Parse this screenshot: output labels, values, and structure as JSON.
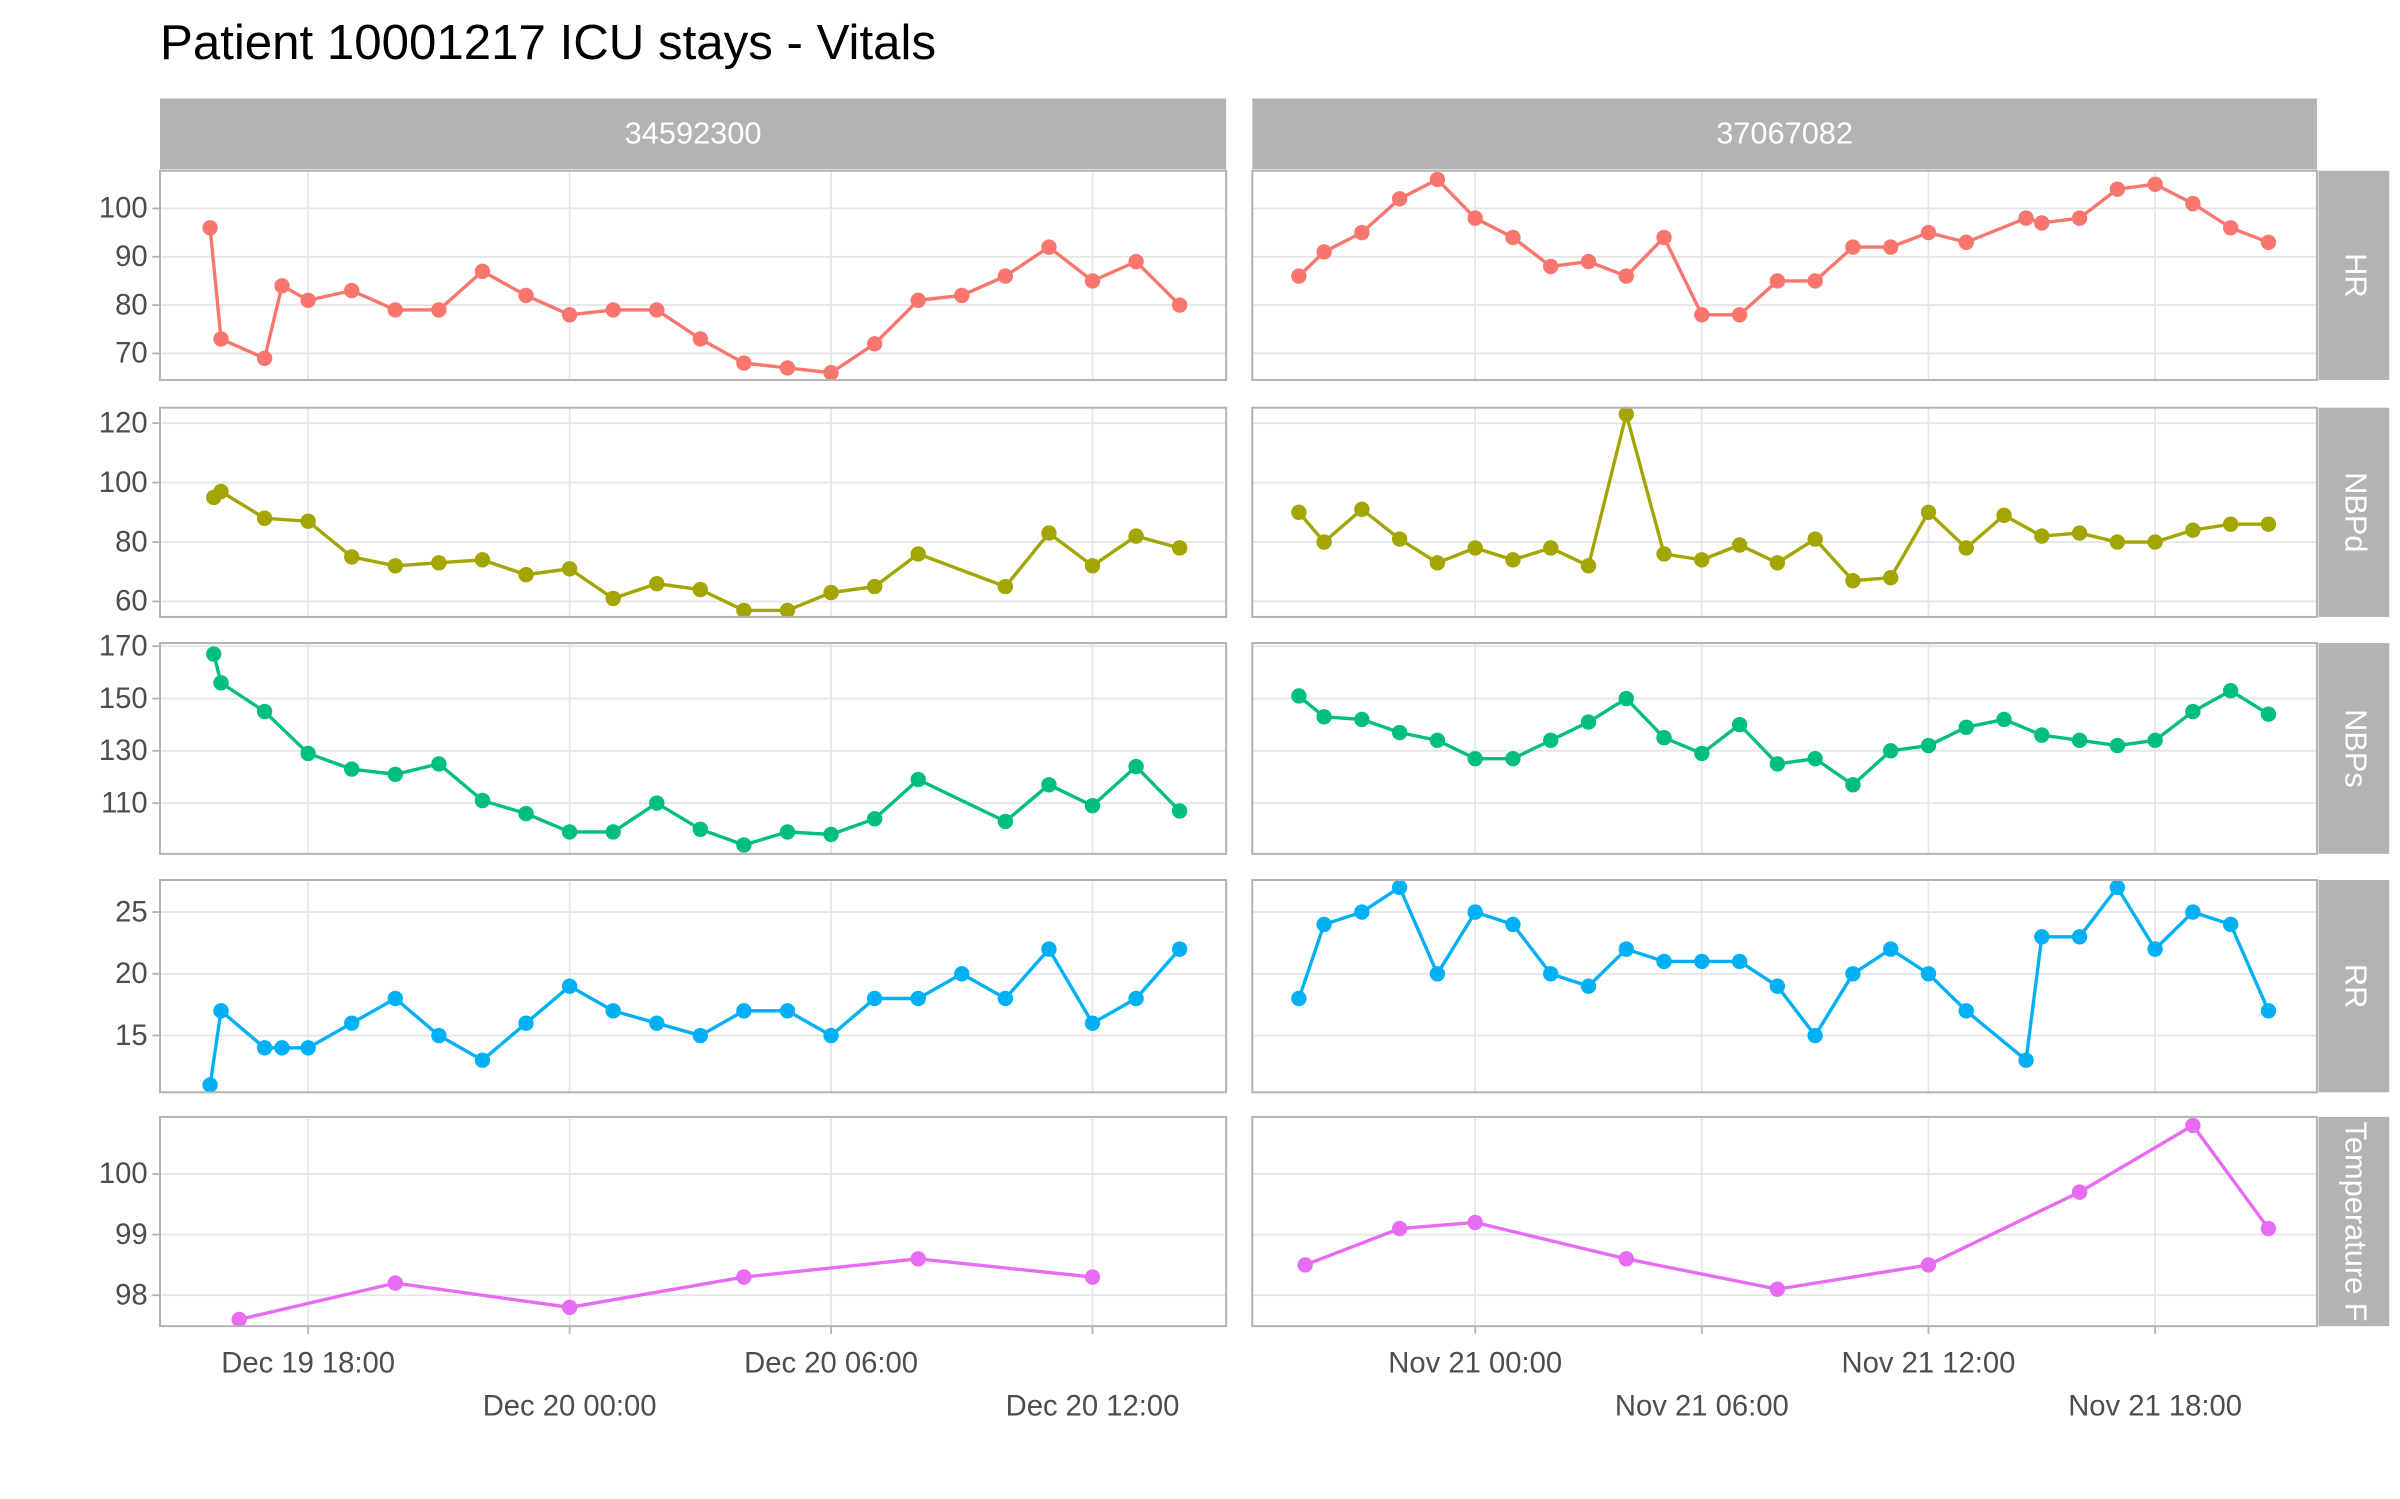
{
  "chart_data": {
    "type": "line",
    "title": "Patient 10001217 ICU stays - Vitals",
    "columns": [
      {
        "name": "34592300",
        "xlim": [
          "Dec 19 14:36",
          "Dec 20 15:04"
        ],
        "xticks": [
          "Dec 19 18:00",
          "Dec 20 00:00",
          "Dec 20 06:00",
          "Dec 20 12:00"
        ]
      },
      {
        "name": "37067082",
        "xlim": [
          "Nov 20 18:06",
          "Nov 21 22:17"
        ],
        "xticks": [
          "Nov 21 00:00",
          "Nov 21 06:00",
          "Nov 21 12:00",
          "Nov 21 18:00"
        ]
      }
    ],
    "rows": [
      {
        "name": "HR",
        "color": "#F8766D",
        "ylim": [
          64.5,
          107.8
        ],
        "yticks": [
          70,
          80,
          90,
          100
        ],
        "panels": [
          {
            "x": [
              "Dec 19 15:45",
              "Dec 19 16:00",
              "Dec 19 17:00",
              "Dec 19 17:24",
              "Dec 19 18:00",
              "Dec 19 19:00",
              "Dec 19 20:00",
              "Dec 19 21:00",
              "Dec 19 22:00",
              "Dec 19 23:00",
              "Dec 20 00:00",
              "Dec 20 01:00",
              "Dec 20 02:00",
              "Dec 20 03:00",
              "Dec 20 04:00",
              "Dec 20 05:00",
              "Dec 20 06:00",
              "Dec 20 07:00",
              "Dec 20 08:00",
              "Dec 20 09:00",
              "Dec 20 10:00",
              "Dec 20 11:00",
              "Dec 20 12:00",
              "Dec 20 13:00",
              "Dec 20 14:00"
            ],
            "values": [
              96,
              73,
              69,
              84,
              81,
              83,
              79,
              79,
              87,
              82,
              78,
              79,
              79,
              73,
              68,
              67,
              66,
              72,
              81,
              82,
              86,
              92,
              85,
              89,
              80
            ]
          },
          {
            "x": [
              "Nov 20 19:20",
              "Nov 20 20:00",
              "Nov 20 21:00",
              "Nov 20 22:00",
              "Nov 20 23:00",
              "Nov 21 00:00",
              "Nov 21 01:00",
              "Nov 21 02:00",
              "Nov 21 03:00",
              "Nov 21 04:00",
              "Nov 21 05:00",
              "Nov 21 06:00",
              "Nov 21 07:00",
              "Nov 21 08:00",
              "Nov 21 09:00",
              "Nov 21 10:00",
              "Nov 21 11:00",
              "Nov 21 12:00",
              "Nov 21 13:00",
              "Nov 21 14:35",
              "Nov 21 15:00",
              "Nov 21 16:00",
              "Nov 21 17:00",
              "Nov 21 18:00",
              "Nov 21 19:00",
              "Nov 21 20:00",
              "Nov 21 21:00"
            ],
            "values": [
              86,
              91,
              95,
              102,
              106,
              98,
              94,
              88,
              89,
              86,
              94,
              78,
              78,
              85,
              85,
              92,
              92,
              95,
              93,
              98,
              97,
              98,
              104,
              105,
              101,
              96,
              93
            ]
          }
        ]
      },
      {
        "name": "NBPd",
        "color": "#A3A500",
        "ylim": [
          54.8,
          125.2
        ],
        "yticks": [
          60,
          80,
          100,
          120
        ],
        "panels": [
          {
            "x": [
              "Dec 19 15:50",
              "Dec 19 16:00",
              "Dec 19 17:00",
              "Dec 19 18:00",
              "Dec 19 19:00",
              "Dec 19 20:00",
              "Dec 19 21:00",
              "Dec 19 22:00",
              "Dec 19 23:00",
              "Dec 20 00:00",
              "Dec 20 01:00",
              "Dec 20 02:00",
              "Dec 20 03:00",
              "Dec 20 04:00",
              "Dec 20 05:00",
              "Dec 20 06:00",
              "Dec 20 07:00",
              "Dec 20 08:00",
              "Dec 20 10:00",
              "Dec 20 11:00",
              "Dec 20 12:00",
              "Dec 20 13:00",
              "Dec 20 14:00"
            ],
            "values": [
              95,
              97,
              88,
              87,
              75,
              72,
              73,
              74,
              69,
              71,
              61,
              66,
              64,
              57,
              57,
              63,
              65,
              76,
              65,
              83,
              72,
              82,
              78
            ]
          },
          {
            "x": [
              "Nov 20 19:20",
              "Nov 20 20:00",
              "Nov 20 21:00",
              "Nov 20 22:00",
              "Nov 20 23:00",
              "Nov 21 00:00",
              "Nov 21 01:00",
              "Nov 21 02:00",
              "Nov 21 03:00",
              "Nov 21 04:00",
              "Nov 21 05:00",
              "Nov 21 06:00",
              "Nov 21 07:00",
              "Nov 21 08:00",
              "Nov 21 09:00",
              "Nov 21 10:00",
              "Nov 21 11:00",
              "Nov 21 12:00",
              "Nov 21 13:00",
              "Nov 21 14:00",
              "Nov 21 15:00",
              "Nov 21 16:00",
              "Nov 21 17:00",
              "Nov 21 18:00",
              "Nov 21 19:00",
              "Nov 21 20:00",
              "Nov 21 21:00"
            ],
            "values": [
              90,
              80,
              91,
              81,
              73,
              78,
              74,
              78,
              72,
              123,
              76,
              74,
              79,
              73,
              81,
              67,
              68,
              90,
              78,
              89,
              82,
              83,
              80,
              80,
              84,
              86,
              86
            ]
          }
        ]
      },
      {
        "name": "NBPs",
        "color": "#00BF7D",
        "ylim": [
          90.6,
          171.2
        ],
        "yticks": [
          110,
          130,
          150,
          170
        ],
        "panels": [
          {
            "x": [
              "Dec 19 15:50",
              "Dec 19 16:00",
              "Dec 19 17:00",
              "Dec 19 18:00",
              "Dec 19 19:00",
              "Dec 19 20:00",
              "Dec 19 21:00",
              "Dec 19 22:00",
              "Dec 19 23:00",
              "Dec 20 00:00",
              "Dec 20 01:00",
              "Dec 20 02:00",
              "Dec 20 03:00",
              "Dec 20 04:00",
              "Dec 20 05:00",
              "Dec 20 06:00",
              "Dec 20 07:00",
              "Dec 20 08:00",
              "Dec 20 10:00",
              "Dec 20 11:00",
              "Dec 20 12:00",
              "Dec 20 13:00",
              "Dec 20 14:00"
            ],
            "values": [
              167,
              156,
              145,
              129,
              123,
              121,
              125,
              111,
              106,
              99,
              99,
              110,
              100,
              94,
              99,
              98,
              104,
              119,
              103,
              117,
              109,
              124,
              107
            ]
          },
          {
            "x": [
              "Nov 20 19:20",
              "Nov 20 20:00",
              "Nov 20 21:00",
              "Nov 20 22:00",
              "Nov 20 23:00",
              "Nov 21 00:00",
              "Nov 21 01:00",
              "Nov 21 02:00",
              "Nov 21 03:00",
              "Nov 21 04:00",
              "Nov 21 05:00",
              "Nov 21 06:00",
              "Nov 21 07:00",
              "Nov 21 08:00",
              "Nov 21 09:00",
              "Nov 21 10:00",
              "Nov 21 11:00",
              "Nov 21 12:00",
              "Nov 21 13:00",
              "Nov 21 14:00",
              "Nov 21 15:00",
              "Nov 21 16:00",
              "Nov 21 17:00",
              "Nov 21 18:00",
              "Nov 21 19:00",
              "Nov 21 20:00",
              "Nov 21 21:00"
            ],
            "values": [
              151,
              143,
              142,
              137,
              134,
              127,
              127,
              134,
              141,
              150,
              135,
              129,
              140,
              125,
              127,
              117,
              130,
              132,
              139,
              142,
              136,
              134,
              132,
              134,
              145,
              153,
              144
            ]
          }
        ]
      },
      {
        "name": "RR",
        "color": "#00B0F6",
        "ylim": [
          10.4,
          27.6
        ],
        "yticks": [
          15,
          20,
          25
        ],
        "panels": [
          {
            "x": [
              "Dec 19 15:45",
              "Dec 19 16:00",
              "Dec 19 17:00",
              "Dec 19 17:24",
              "Dec 19 18:00",
              "Dec 19 19:00",
              "Dec 19 20:00",
              "Dec 19 21:00",
              "Dec 19 22:00",
              "Dec 19 23:00",
              "Dec 20 00:00",
              "Dec 20 01:00",
              "Dec 20 02:00",
              "Dec 20 03:00",
              "Dec 20 04:00",
              "Dec 20 05:00",
              "Dec 20 06:00",
              "Dec 20 07:00",
              "Dec 20 08:00",
              "Dec 20 09:00",
              "Dec 20 10:00",
              "Dec 20 11:00",
              "Dec 20 12:00",
              "Dec 20 13:00",
              "Dec 20 14:00"
            ],
            "values": [
              11,
              17,
              14,
              14,
              14,
              16,
              18,
              15,
              13,
              16,
              19,
              17,
              16,
              15,
              17,
              17,
              15,
              18,
              18,
              20,
              18,
              22,
              16,
              18,
              22
            ]
          },
          {
            "x": [
              "Nov 20 19:20",
              "Nov 20 20:00",
              "Nov 20 21:00",
              "Nov 20 22:00",
              "Nov 20 23:00",
              "Nov 21 00:00",
              "Nov 21 01:00",
              "Nov 21 02:00",
              "Nov 21 03:00",
              "Nov 21 04:00",
              "Nov 21 05:00",
              "Nov 21 06:00",
              "Nov 21 07:00",
              "Nov 21 08:00",
              "Nov 21 09:00",
              "Nov 21 10:00",
              "Nov 21 11:00",
              "Nov 21 12:00",
              "Nov 21 13:00",
              "Nov 21 14:35",
              "Nov 21 15:00",
              "Nov 21 16:00",
              "Nov 21 17:00",
              "Nov 21 18:00",
              "Nov 21 19:00",
              "Nov 21 20:00",
              "Nov 21 21:00"
            ],
            "values": [
              18,
              24,
              25,
              27,
              20,
              25,
              24,
              20,
              19,
              22,
              21,
              21,
              21,
              19,
              15,
              20,
              22,
              20,
              17,
              13,
              23,
              23,
              27,
              22,
              25,
              24,
              17
            ]
          }
        ]
      },
      {
        "name": "Temperature F",
        "color": "#E76BF3",
        "ylim": [
          97.49,
          100.94
        ],
        "yticks": [
          98,
          99,
          100
        ],
        "panels": [
          {
            "x": [
              "Dec 19 16:25",
              "Dec 19 20:00",
              "Dec 20 00:00",
              "Dec 20 04:00",
              "Dec 20 08:00",
              "Dec 20 12:00"
            ],
            "values": [
              97.6,
              98.2,
              97.8,
              98.3,
              98.6,
              98.3
            ]
          },
          {
            "x": [
              "Nov 20 19:30",
              "Nov 20 22:00",
              "Nov 21 00:00",
              "Nov 21 04:00",
              "Nov 21 08:00",
              "Nov 21 12:00",
              "Nov 21 16:00",
              "Nov 21 19:00",
              "Nov 21 21:00"
            ],
            "values": [
              98.5,
              99.1,
              99.2,
              98.6,
              98.1,
              98.5,
              99.7,
              100.8,
              99.1
            ]
          }
        ]
      }
    ]
  }
}
